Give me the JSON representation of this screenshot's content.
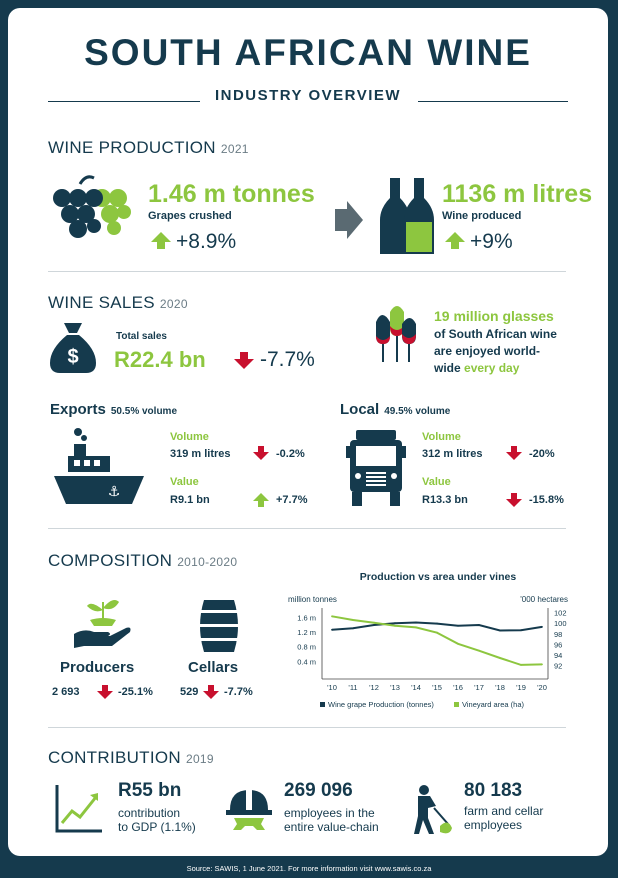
{
  "header": {
    "title": "SOUTH AFRICAN WINE",
    "subtitle": "INDUSTRY OVERVIEW"
  },
  "production": {
    "heading": "WINE PRODUCTION",
    "year": "2021",
    "grapes": {
      "value": "1.46 m tonnes",
      "label": "Grapes crushed",
      "change": "+8.9%"
    },
    "wine": {
      "value": "1136 m litres",
      "label": "Wine produced",
      "change": "+9%"
    }
  },
  "sales": {
    "heading": "WINE SALES",
    "year": "2020",
    "total_label": "Total sales",
    "total_value": "R22.4 bn",
    "total_change": "-7.7%",
    "glasses": {
      "line1": "19 million glasses",
      "line2": "of South African wine",
      "line3": "are enjoyed world-",
      "line4a": "wide ",
      "line4b": "every day"
    },
    "exports": {
      "title": "Exports",
      "share": "50.5% volume",
      "volume_label": "Volume",
      "volume_value": "319 m litres",
      "volume_change": "-0.2%",
      "value_label": "Value",
      "value_value": "R9.1 bn",
      "value_change": "+7.7%"
    },
    "local": {
      "title": "Local",
      "share": "49.5% volume",
      "volume_label": "Volume",
      "volume_value": "312 m litres",
      "volume_change": "-20%",
      "value_label": "Value",
      "value_value": "R13.3 bn",
      "value_change": "-15.8%"
    }
  },
  "composition": {
    "heading": "COMPOSITION",
    "year": "2010-2020",
    "producers": {
      "label": "Producers",
      "count": "2 693",
      "change": "-25.1%"
    },
    "cellars": {
      "label": "Cellars",
      "count": "529",
      "change": "-7.7%"
    }
  },
  "chart_data": {
    "type": "line",
    "title": "Production vs area under vines",
    "ylabel_left": "million tonnes",
    "ylabel_right": "'000 hectares",
    "categories": [
      "'10",
      "'11",
      "'12",
      "'13",
      "'14",
      "'15",
      "'16",
      "'17",
      "'18",
      "'19",
      "'20"
    ],
    "left_ticks": [
      "1.6 m",
      "1.2 m",
      "0.8 m",
      "0.4 m"
    ],
    "left_tick_values": [
      1.6,
      1.2,
      0.8,
      0.4
    ],
    "ylim_left": [
      0,
      1.8
    ],
    "right_ticks": [
      "102",
      "100",
      "98",
      "96",
      "94",
      "92"
    ],
    "right_tick_values": [
      102,
      100,
      98,
      96,
      94,
      92
    ],
    "ylim_right": [
      90,
      102.5
    ],
    "series": [
      {
        "name": "Wine grape Production (tonnes)",
        "axis": "left",
        "color": "#153a4d",
        "values": [
          1.26,
          1.3,
          1.39,
          1.44,
          1.46,
          1.43,
          1.37,
          1.39,
          1.24,
          1.25,
          1.34
        ]
      },
      {
        "name": "Vineyard area (ha)",
        "axis": "right",
        "color": "#8dc63f",
        "values": [
          101.3,
          100.6,
          100.1,
          99.5,
          99.2,
          98.2,
          96.1,
          94.8,
          93.4,
          92.1,
          92.2
        ]
      }
    ]
  },
  "contribution": {
    "heading": "CONTRIBUTION",
    "year": "2019",
    "gdp": {
      "value": "R55 bn",
      "line1": "contribution",
      "line2": "to GDP (1.1%)"
    },
    "employees": {
      "value": "269 096",
      "line1": "employees in the",
      "line2": "entire value-chain"
    },
    "farm": {
      "value": "80 183",
      "line1": "farm and cellar",
      "line2": "employees"
    }
  },
  "footer": "Source: SAWIS, 1 June 2021. For more information visit www.sawis.co.za",
  "colors": {
    "navy": "#153a4d",
    "green": "#8dc63f",
    "red": "#c8102e",
    "grey": "#5a6a72"
  }
}
